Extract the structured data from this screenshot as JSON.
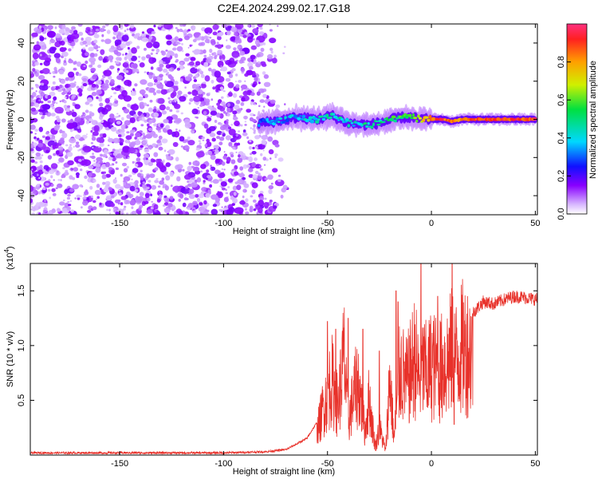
{
  "title": "C2E4.2024.299.02.17.G18",
  "chart_data": [
    {
      "type": "heatmap",
      "xlabel": "Height of straight line (km)",
      "ylabel": "Frequency (Hz)",
      "xlim": [
        -193,
        51
      ],
      "ylim": [
        -50,
        50
      ],
      "xticks": [
        -150,
        -100,
        -50,
        0,
        50
      ],
      "yticks": [
        -40,
        -20,
        0,
        20,
        40
      ],
      "noise_region_x": [
        -193,
        -75
      ],
      "signal_track": {
        "x": [
          -83,
          -75,
          -65,
          -55,
          -48,
          -40,
          -30,
          -22,
          -15,
          -10,
          -5,
          0,
          5,
          10,
          15,
          20,
          30,
          40,
          50
        ],
        "freq": [
          -2,
          -1,
          1,
          0,
          2,
          -2,
          -3,
          -1,
          1,
          1,
          0,
          0,
          0,
          -1,
          0,
          0,
          0,
          0,
          0
        ],
        "amplitude": [
          0.3,
          0.35,
          0.35,
          0.4,
          0.45,
          0.4,
          0.45,
          0.5,
          0.55,
          0.6,
          0.7,
          0.85,
          0.9,
          0.8,
          0.85,
          0.85,
          0.9,
          0.9,
          0.9
        ]
      },
      "colorbar": {
        "label": "Normalized spectral amplitude",
        "range": [
          0,
          1
        ],
        "ticks": [
          0.0,
          0.2,
          0.4,
          0.6,
          0.8
        ]
      },
      "grid": false
    },
    {
      "type": "line",
      "xlabel": "Height of straight line (km)",
      "ylabel": "SNR (10 * v/v)",
      "y_multiplier": "(x10",
      "y_multiplier_exp": "4",
      "xlim": [
        -193,
        51
      ],
      "ylim": [
        0,
        1.75
      ],
      "xticks": [
        -150,
        -100,
        -50,
        0,
        50
      ],
      "yticks": [
        "0.5",
        "1.0",
        "1.5"
      ],
      "color": "#e8312a",
      "series": [
        {
          "x": [
            -193,
            -150,
            -100,
            -80,
            -70,
            -65,
            -60,
            -55,
            -52,
            -48,
            -45,
            -42,
            -40,
            -37,
            -35,
            -32,
            -30,
            -27,
            -25,
            -22,
            -20,
            -18,
            -15,
            -12,
            -10,
            -8,
            -6,
            -4,
            -2,
            0,
            3,
            5,
            8,
            10,
            12,
            15,
            20,
            25,
            30,
            35,
            40,
            45,
            51
          ],
          "y": [
            0.02,
            0.02,
            0.02,
            0.03,
            0.05,
            0.1,
            0.15,
            0.3,
            0.6,
            0.95,
            0.6,
            1.25,
            0.4,
            0.8,
            0.9,
            0.3,
            0.7,
            0.1,
            0.35,
            0.05,
            1.0,
            0.2,
            1.1,
            0.9,
            1.05,
            1.25,
            0.95,
            1.1,
            1.0,
            1.15,
            1.05,
            1.1,
            1.2,
            1.3,
            1.2,
            1.35,
            1.3,
            1.4,
            1.38,
            1.42,
            1.45,
            1.44,
            1.42
          ],
          "spikes": [
            {
              "x": -50,
              "y": 1.22
            },
            {
              "x": -46,
              "y": 1.15
            },
            {
              "x": -40,
              "y": 1.25
            },
            {
              "x": -33,
              "y": 1.15
            },
            {
              "x": -25,
              "y": 0.95
            },
            {
              "x": -17,
              "y": 1.5
            },
            {
              "x": -16,
              "y": 1.4
            },
            {
              "x": -5,
              "y": 1.75
            },
            {
              "x": 3,
              "y": 1.45
            },
            {
              "x": 10,
              "y": 1.75
            },
            {
              "x": 11,
              "y": 0.28
            }
          ]
        }
      ],
      "grid": false
    }
  ]
}
